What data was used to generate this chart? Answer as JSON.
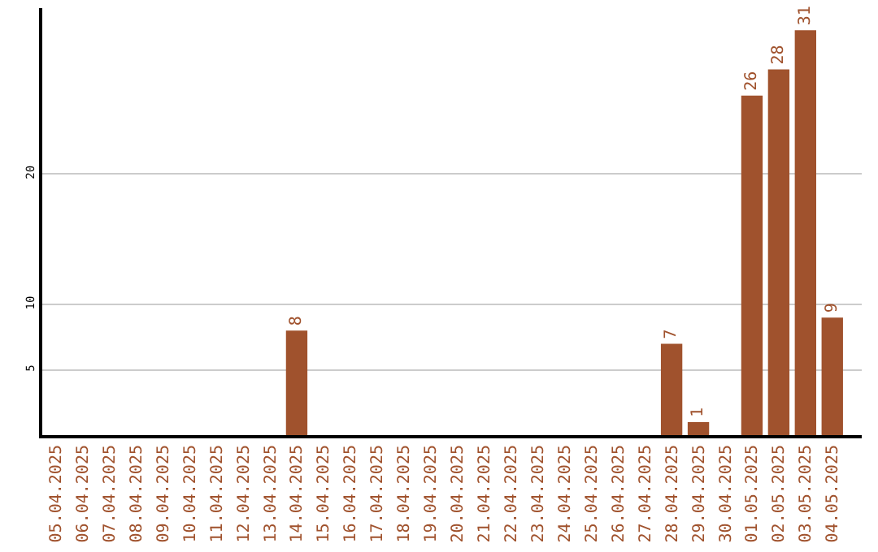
{
  "chart_data": {
    "type": "bar",
    "categories": [
      "05.04.2025",
      "06.04.2025",
      "07.04.2025",
      "08.04.2025",
      "09.04.2025",
      "10.04.2025",
      "11.04.2025",
      "12.04.2025",
      "13.04.2025",
      "14.04.2025",
      "15.04.2025",
      "16.04.2025",
      "17.04.2025",
      "18.04.2025",
      "19.04.2025",
      "20.04.2025",
      "21.04.2025",
      "22.04.2025",
      "23.04.2025",
      "24.04.2025",
      "25.04.2025",
      "26.04.2025",
      "27.04.2025",
      "28.04.2025",
      "29.04.2025",
      "30.04.2025",
      "01.05.2025",
      "02.05.2025",
      "03.05.2025",
      "04.05.2025"
    ],
    "values": [
      0,
      0,
      0,
      0,
      0,
      0,
      0,
      0,
      0,
      8,
      0,
      0,
      0,
      0,
      0,
      0,
      0,
      0,
      0,
      0,
      0,
      0,
      0,
      7,
      1,
      0,
      26,
      28,
      31,
      9
    ],
    "value_labels": [
      null,
      null,
      null,
      null,
      null,
      null,
      null,
      null,
      null,
      "8",
      null,
      null,
      null,
      null,
      null,
      null,
      null,
      null,
      null,
      null,
      null,
      null,
      null,
      "7",
      "1",
      null,
      "26",
      "28",
      "31",
      "9"
    ],
    "color": "#a0522d",
    "ylim": [
      0,
      32.7
    ],
    "yticks": [
      5,
      10,
      20
    ],
    "grid": "y"
  }
}
